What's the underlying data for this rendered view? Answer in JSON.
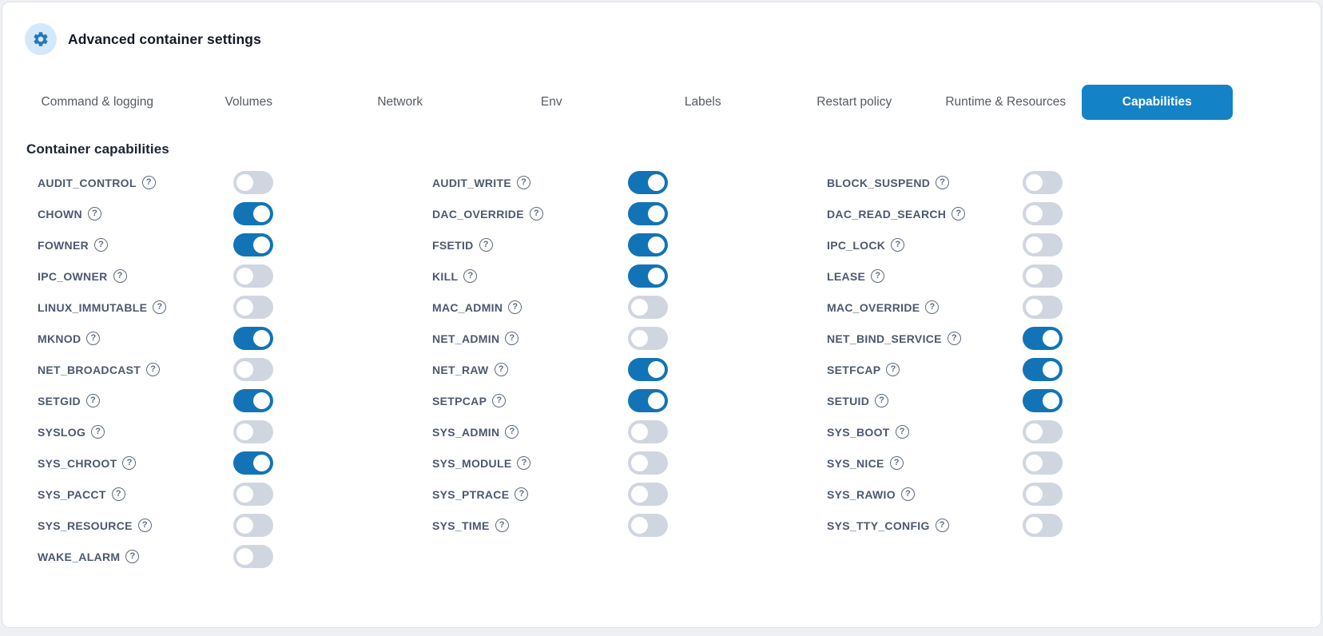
{
  "header": {
    "title": "Advanced container settings",
    "icon": "gear"
  },
  "tabs": {
    "items": [
      {
        "label": "Command & logging",
        "active": false
      },
      {
        "label": "Volumes",
        "active": false
      },
      {
        "label": "Network",
        "active": false
      },
      {
        "label": "Env",
        "active": false
      },
      {
        "label": "Labels",
        "active": false
      },
      {
        "label": "Restart policy",
        "active": false
      },
      {
        "label": "Runtime & Resources",
        "active": false
      },
      {
        "label": "Capabilities",
        "active": true
      }
    ]
  },
  "capabilities_section": {
    "title": "Container capabilities",
    "help_glyph": "?",
    "columns": [
      [
        {
          "name": "AUDIT_CONTROL",
          "on": false
        },
        {
          "name": "CHOWN",
          "on": true
        },
        {
          "name": "FOWNER",
          "on": true
        },
        {
          "name": "IPC_OWNER",
          "on": false
        },
        {
          "name": "LINUX_IMMUTABLE",
          "on": false
        },
        {
          "name": "MKNOD",
          "on": true
        },
        {
          "name": "NET_BROADCAST",
          "on": false
        },
        {
          "name": "SETGID",
          "on": true
        },
        {
          "name": "SYSLOG",
          "on": false
        },
        {
          "name": "SYS_CHROOT",
          "on": true
        },
        {
          "name": "SYS_PACCT",
          "on": false
        },
        {
          "name": "SYS_RESOURCE",
          "on": false
        },
        {
          "name": "WAKE_ALARM",
          "on": false
        }
      ],
      [
        {
          "name": "AUDIT_WRITE",
          "on": true
        },
        {
          "name": "DAC_OVERRIDE",
          "on": true
        },
        {
          "name": "FSETID",
          "on": true
        },
        {
          "name": "KILL",
          "on": true
        },
        {
          "name": "MAC_ADMIN",
          "on": false
        },
        {
          "name": "NET_ADMIN",
          "on": false
        },
        {
          "name": "NET_RAW",
          "on": true
        },
        {
          "name": "SETPCAP",
          "on": true
        },
        {
          "name": "SYS_ADMIN",
          "on": false
        },
        {
          "name": "SYS_MODULE",
          "on": false
        },
        {
          "name": "SYS_PTRACE",
          "on": false
        },
        {
          "name": "SYS_TIME",
          "on": false
        }
      ],
      [
        {
          "name": "BLOCK_SUSPEND",
          "on": false
        },
        {
          "name": "DAC_READ_SEARCH",
          "on": false
        },
        {
          "name": "IPC_LOCK",
          "on": false
        },
        {
          "name": "LEASE",
          "on": false
        },
        {
          "name": "MAC_OVERRIDE",
          "on": false
        },
        {
          "name": "NET_BIND_SERVICE",
          "on": true
        },
        {
          "name": "SETFCAP",
          "on": true
        },
        {
          "name": "SETUID",
          "on": true
        },
        {
          "name": "SYS_BOOT",
          "on": false
        },
        {
          "name": "SYS_NICE",
          "on": false
        },
        {
          "name": "SYS_RAWIO",
          "on": false
        },
        {
          "name": "SYS_TTY_CONFIG",
          "on": false
        }
      ]
    ]
  },
  "colors": {
    "accent_tab": "#1482c6",
    "toggle_on": "#1274b6",
    "toggle_off": "#d0d6e0",
    "label_text": "#4c5870",
    "tab_text": "#555b63",
    "title_text": "#131a26",
    "icon_bg": "#d5e8f8",
    "icon_fg": "#2478bd",
    "card_border": "#dde1e9",
    "page_bg": "#eef0f4"
  }
}
